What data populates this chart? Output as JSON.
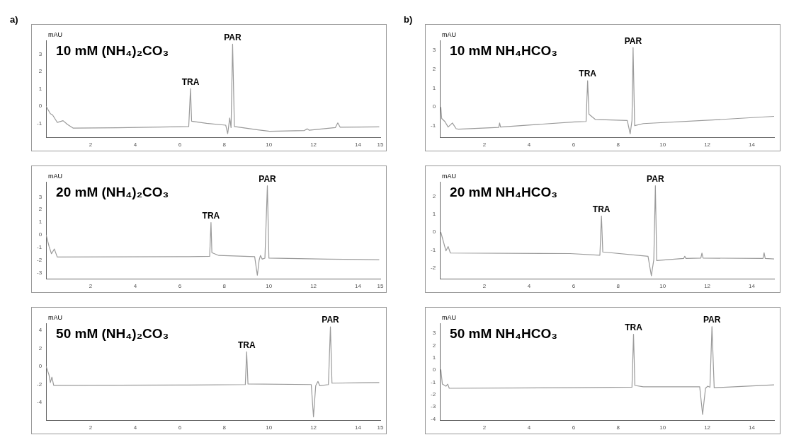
{
  "chart_data": [
    {
      "type": "line",
      "title": "10 mM (NH₄)₂CO₃",
      "ylabel": "mAU",
      "annotations": [
        "a)",
        {
          "text": "TRA",
          "x": 6.48,
          "y": 1.01
        },
        {
          "text": "PAR",
          "x": 8.37,
          "y": 3.58
        }
      ],
      "xlim": [
        0,
        15
      ],
      "ylim": [
        -1.8,
        3.8
      ],
      "xticks": [
        2,
        4,
        6,
        8,
        10,
        12,
        14,
        15
      ],
      "yticks": [
        -1,
        0,
        1,
        2,
        3
      ],
      "grid": false,
      "series": [
        {
          "color": "#9a9a9a",
          "x": [
            0,
            0.19,
            0.29,
            0.5,
            0.76,
            0.96,
            1.22,
            3.2,
            6.4,
            6.48,
            6.53,
            7.2,
            8.06,
            8.15,
            8.24,
            8.3,
            8.37,
            8.45,
            9.51,
            10.03,
            11.59,
            11.72,
            11.8,
            12.98,
            13.09,
            13.2,
            14.95
          ],
          "values": [
            0,
            -0.43,
            -0.5,
            -0.93,
            -0.83,
            -1.05,
            -1.26,
            -1.24,
            -1.17,
            1.01,
            -0.86,
            -0.98,
            -1.09,
            -1.58,
            -0.68,
            -1.23,
            3.58,
            -1.17,
            -1.36,
            -1.44,
            -1.4,
            -1.3,
            -1.38,
            -1.23,
            -0.96,
            -1.21,
            -1.19
          ]
        }
      ]
    },
    {
      "type": "line",
      "title": "10 mM NH₄HCO₃",
      "ylabel": "mAU",
      "annotations": [
        "b)",
        {
          "text": "TRA",
          "x": 6.63,
          "y": 1.38
        },
        {
          "text": "PAR",
          "x": 8.67,
          "y": 3.12
        }
      ],
      "xlim": [
        0,
        15
      ],
      "ylim": [
        -1.6,
        3.5
      ],
      "xticks": [
        2,
        4,
        6,
        8,
        10,
        12,
        14
      ],
      "yticks": [
        -1,
        0,
        1,
        2,
        3
      ],
      "grid": false,
      "series": [
        {
          "color": "#9a9a9a",
          "x": [
            0.04,
            0.08,
            0.22,
            0.37,
            0.56,
            0.73,
            0.84,
            2.64,
            2.68,
            2.72,
            6.04,
            6.56,
            6.63,
            6.69,
            6.97,
            8.41,
            8.54,
            8.62,
            8.67,
            8.74,
            9.13,
            12.23,
            15
          ],
          "values": [
            0,
            -0.6,
            -0.76,
            -1.05,
            -0.84,
            -1.14,
            -1.16,
            -1.07,
            -0.84,
            -1.05,
            -0.78,
            -0.76,
            1.38,
            -0.38,
            -0.65,
            -0.71,
            -1.41,
            -0.71,
            3.12,
            -0.98,
            -0.87,
            -0.68,
            -0.49
          ]
        }
      ]
    },
    {
      "type": "line",
      "title": "20 mM (NH₄)₂CO₃",
      "ylabel": "mAU",
      "annotations": [
        {
          "text": "TRA",
          "x": 7.4,
          "y": 0.97
        },
        {
          "text": "PAR",
          "x": 9.93,
          "y": 3.88
        }
      ],
      "xlim": [
        0,
        15
      ],
      "ylim": [
        -3.5,
        4.2
      ],
      "xticks": [
        2,
        4,
        6,
        8,
        10,
        12,
        14,
        15
      ],
      "yticks": [
        -3,
        -2,
        -1,
        0,
        1,
        2,
        3
      ],
      "grid": false,
      "series": [
        {
          "color": "#9a9a9a",
          "x": [
            0,
            0.13,
            0.24,
            0.37,
            0.5,
            6.4,
            7.34,
            7.4,
            7.44,
            7.75,
            9.36,
            9.48,
            9.56,
            9.62,
            9.7,
            9.82,
            9.93,
            10.0,
            12.62,
            14.95
          ],
          "values": [
            0,
            -0.91,
            -1.5,
            -1.13,
            -1.76,
            -1.73,
            -1.71,
            0.97,
            -1.42,
            -1.64,
            -1.73,
            -3.21,
            -2.02,
            -1.64,
            -1.93,
            -1.85,
            3.88,
            -1.85,
            -1.93,
            -1.98
          ]
        }
      ]
    },
    {
      "type": "line",
      "title": "20 mM NH₄HCO₃",
      "ylabel": "mAU",
      "annotations": [
        {
          "text": "TRA",
          "x": 7.25,
          "y": 0.9
        },
        {
          "text": "PAR",
          "x": 9.67,
          "y": 2.58
        }
      ],
      "xlim": [
        0,
        15
      ],
      "ylim": [
        -2.6,
        2.8
      ],
      "xticks": [
        2,
        4,
        6,
        8,
        10,
        12,
        14
      ],
      "yticks": [
        -2,
        -1,
        0,
        1,
        2
      ],
      "grid": false,
      "series": [
        {
          "color": "#9a9a9a",
          "x": [
            0.04,
            0.27,
            0.37,
            0.47,
            5.84,
            7.18,
            7.25,
            7.31,
            9.34,
            9.49,
            9.6,
            9.67,
            9.73,
            10.94,
            10.99,
            11.04,
            11.71,
            11.76,
            11.81,
            14.5,
            14.55,
            14.6,
            15
          ],
          "values": [
            0,
            -1.04,
            -0.8,
            -1.16,
            -1.19,
            -1.28,
            0.9,
            -1.1,
            -1.34,
            -2.42,
            -1.52,
            2.58,
            -1.58,
            -1.46,
            -1.34,
            -1.46,
            -1.44,
            -1.16,
            -1.44,
            -1.46,
            -1.14,
            -1.46,
            -1.49
          ]
        }
      ]
    },
    {
      "type": "line",
      "title": "50 mM (NH₄)₂CO₃",
      "ylabel": "mAU",
      "annotations": [
        {
          "text": "TRA",
          "x": 9.0,
          "y": 1.62
        },
        {
          "text": "PAR",
          "x": 12.76,
          "y": 4.4
        }
      ],
      "xlim": [
        0,
        15
      ],
      "ylim": [
        -6,
        4.8
      ],
      "xticks": [
        2,
        4,
        6,
        8,
        10,
        12,
        14,
        15
      ],
      "yticks": [
        -4,
        -2,
        0,
        2,
        4
      ],
      "grid": false,
      "series": [
        {
          "color": "#9a9a9a",
          "x": [
            0,
            0.13,
            0.19,
            0.26,
            0.34,
            6.4,
            8.94,
            9.0,
            9.06,
            11.9,
            12.0,
            12.1,
            12.2,
            12.28,
            12.67,
            12.76,
            12.83,
            14.95
          ],
          "values": [
            0,
            -0.95,
            -1.79,
            -1.19,
            -2.1,
            -2.07,
            -2.02,
            1.62,
            -1.95,
            -2.02,
            -5.6,
            -2.14,
            -1.67,
            -2.14,
            -2.02,
            4.4,
            -1.86,
            -1.79
          ]
        }
      ]
    },
    {
      "type": "line",
      "title": "50 mM NH₄HCO₃",
      "ylabel": "mAU",
      "annotations": [
        {
          "text": "TRA",
          "x": 8.69,
          "y": 2.91
        },
        {
          "text": "PAR",
          "x": 12.21,
          "y": 3.52
        }
      ],
      "xlim": [
        0,
        15
      ],
      "ylim": [
        -4.1,
        3.8
      ],
      "xticks": [
        2,
        4,
        6,
        8,
        10,
        12,
        14
      ],
      "yticks": [
        -4,
        -3,
        -2,
        -1,
        0,
        1,
        2,
        3
      ],
      "grid": false,
      "series": [
        {
          "color": "#9a9a9a",
          "x": [
            0.04,
            0.11,
            0.27,
            0.35,
            0.42,
            6.04,
            8.62,
            8.69,
            8.75,
            9.13,
            11.66,
            11.79,
            11.92,
            12.02,
            12.12,
            12.21,
            12.31,
            15
          ],
          "values": [
            0.05,
            -1.15,
            -1.32,
            -1.15,
            -1.49,
            -1.44,
            -1.4,
            2.91,
            -1.26,
            -1.37,
            -1.37,
            -3.62,
            -1.49,
            -1.32,
            -1.4,
            3.52,
            -1.44,
            -1.21
          ]
        }
      ]
    }
  ]
}
